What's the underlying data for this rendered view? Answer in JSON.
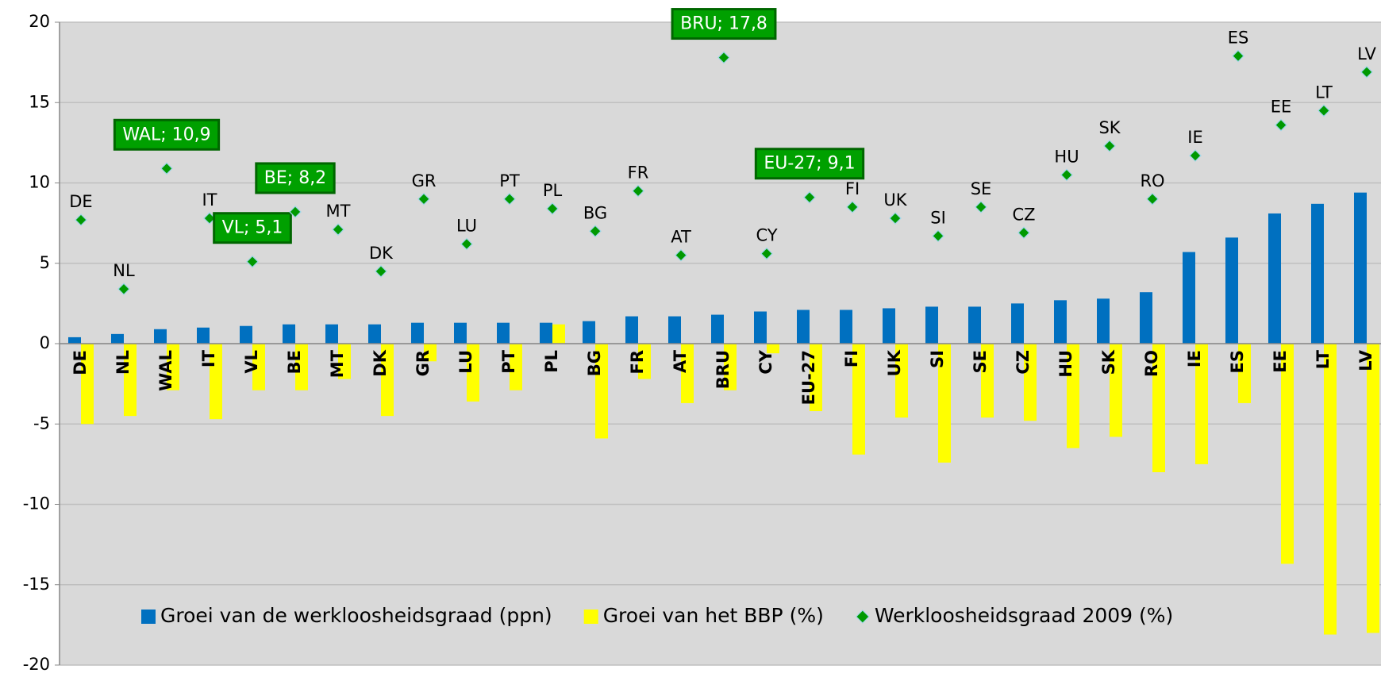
{
  "chart_data": {
    "type": "bar",
    "categories": [
      "DE",
      "NL",
      "WAL",
      "IT",
      "VL",
      "BE",
      "MT",
      "DK",
      "GR",
      "LU",
      "PT",
      "PL",
      "BG",
      "FR",
      "AT",
      "BRU",
      "CY",
      "EU-27",
      "FI",
      "UK",
      "SI",
      "SE",
      "CZ",
      "HU",
      "SK",
      "RO",
      "IE",
      "ES",
      "EE",
      "LT",
      "LV"
    ],
    "series": [
      {
        "name": "Groei van de werkloosheidsgraad (ppn)",
        "type": "bar",
        "color": "#0070c0",
        "values": [
          0.4,
          0.6,
          0.9,
          1.0,
          1.1,
          1.2,
          1.2,
          1.2,
          1.3,
          1.3,
          1.3,
          1.3,
          1.4,
          1.7,
          1.7,
          1.8,
          2.0,
          2.1,
          2.1,
          2.2,
          2.3,
          2.3,
          2.5,
          2.7,
          2.8,
          3.2,
          5.7,
          6.6,
          8.1,
          8.7,
          9.4
        ]
      },
      {
        "name": "Groei van het BBP (%)",
        "type": "bar",
        "color": "#ffff00",
        "values": [
          -5.0,
          -4.5,
          -2.9,
          -4.7,
          -2.9,
          -2.9,
          -2.2,
          -4.5,
          -1.1,
          -3.6,
          -2.9,
          1.2,
          -5.9,
          -2.2,
          -3.7,
          -2.9,
          -0.6,
          -4.2,
          -6.9,
          -4.6,
          -7.4,
          -4.6,
          -4.8,
          -6.5,
          -5.8,
          -8.0,
          -7.5,
          -3.7,
          -13.7,
          -18.1,
          -18.0
        ]
      },
      {
        "name": "Werkloosheidsgraad 2009 (%)",
        "type": "scatter",
        "color": "#009900",
        "values": [
          7.7,
          3.4,
          10.9,
          7.8,
          5.1,
          8.2,
          7.1,
          4.5,
          9.0,
          6.2,
          9.0,
          8.4,
          7.0,
          9.5,
          5.5,
          17.8,
          5.6,
          9.1,
          8.5,
          7.8,
          6.7,
          8.5,
          6.9,
          10.5,
          12.3,
          9.0,
          11.7,
          17.9,
          13.6,
          14.5,
          16.9
        ],
        "value_labels": [
          "DE",
          "NL",
          "WAL; 10,9",
          "IT",
          "VL; 5,1",
          "BE; 8,2",
          "MT",
          "DK",
          "GR",
          "LU",
          "PT",
          "PL",
          "BG",
          "FR",
          "AT",
          "BRU; 17,8",
          "CY",
          "EU-27; 9,1",
          "FI",
          "UK",
          "SI",
          "SE",
          "CZ",
          "HU",
          "SK",
          "RO",
          "IE",
          "ES",
          "EE",
          "LT",
          "LV"
        ]
      }
    ],
    "ylim": [
      -20,
      20
    ],
    "yticks": [
      -20,
      -15,
      -10,
      -5,
      0,
      5,
      10,
      15,
      20
    ],
    "grid": true,
    "legend": "bottom"
  }
}
